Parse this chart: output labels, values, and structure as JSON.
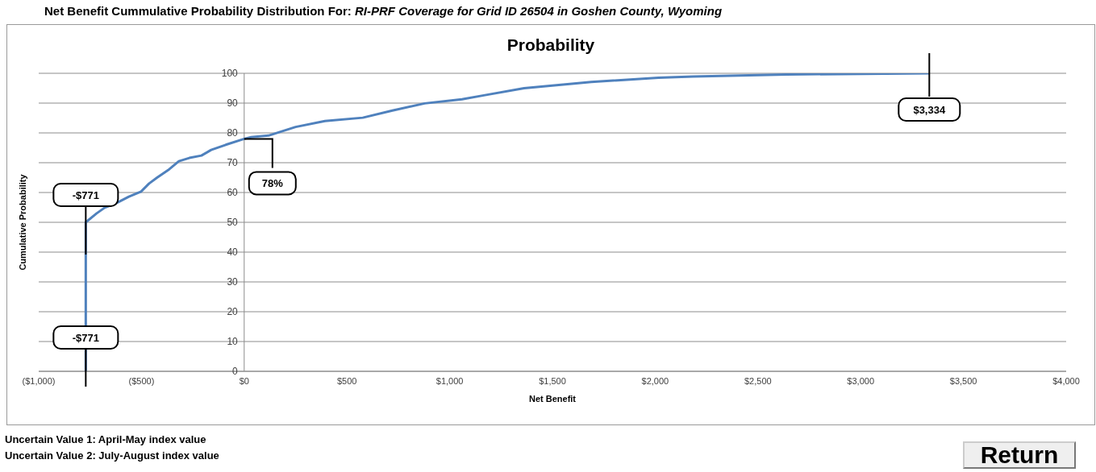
{
  "chart_data": {
    "type": "line",
    "title": "Net Benefit Cummulative Probability Distribution For:",
    "subtitle": "RI-PRF Coverage for Grid ID 26504 in Goshen County, Wyoming",
    "xlabel": "Net Benefit",
    "ylabel": "Cumulative Probability",
    "x": [
      -771,
      -771,
      -718,
      -679,
      -620,
      -561,
      -502,
      -463,
      -424,
      -365,
      -318,
      -267,
      -208,
      -161,
      -90,
      0,
      34,
      118,
      250,
      393,
      577,
      721,
      878,
      1060,
      1166,
      1362,
      1689,
      2016,
      2185,
      2640,
      3334
    ],
    "series": [
      {
        "color": "#4f81bd",
        "values": [
          0,
          50,
          53,
          54.9,
          56.5,
          58.6,
          60.3,
          63,
          65,
          67.8,
          70.5,
          71.6,
          72.4,
          74.3,
          76,
          78,
          78.6,
          79.1,
          82,
          84,
          85.1,
          87.5,
          89.9,
          91.3,
          92.6,
          95,
          97.1,
          98.5,
          98.9,
          99.6,
          100
        ]
      }
    ],
    "xlim": [
      -1000,
      4000
    ],
    "xticks": [
      {
        "value": -1000,
        "label": "($1,000)"
      },
      {
        "value": -500,
        "label": "($500)"
      },
      {
        "value": 0,
        "label": "$0"
      },
      {
        "value": 500,
        "label": "$500"
      },
      {
        "value": 1000,
        "label": "$1,000"
      },
      {
        "value": 1500,
        "label": "$1,500"
      },
      {
        "value": 2000,
        "label": "$2,000"
      },
      {
        "value": 2500,
        "label": "$2,500"
      },
      {
        "value": 3000,
        "label": "$3,000"
      },
      {
        "value": 3500,
        "label": "$3,500"
      },
      {
        "value": 4000,
        "label": "$4,000"
      }
    ],
    "ylim": [
      0,
      100
    ],
    "yticks": [
      0,
      10,
      20,
      30,
      40,
      50,
      60,
      70,
      80,
      90,
      100
    ],
    "grid": "y",
    "legend": false,
    "marker": "none",
    "line_style": "solid",
    "annotations": [
      "Probability",
      {
        "text": "-$771",
        "x": -771,
        "y": 50
      },
      {
        "text": "-$771",
        "x": -771,
        "y": 0
      },
      {
        "text": "78%",
        "x": 0,
        "y": 78
      },
      {
        "text": "$3,334",
        "x": 3334,
        "y": 100
      },
      "Uncertain Value 1: April-May index value",
      "Uncertain Value 2: July-August index value",
      "Return"
    ]
  }
}
